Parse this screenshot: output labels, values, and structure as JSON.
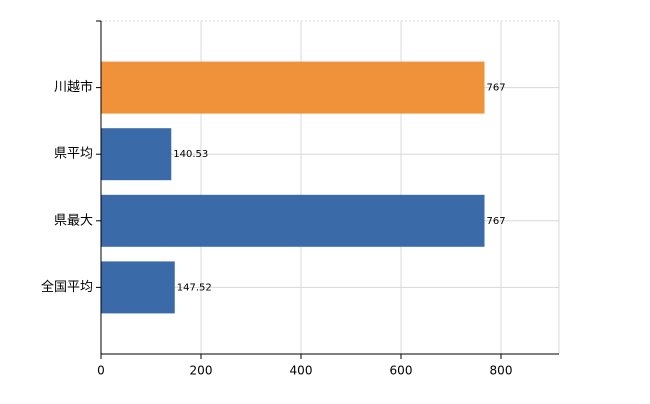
{
  "chart_data": {
    "type": "barh",
    "categories": [
      "川越市",
      "県平均",
      "県最大",
      "全国平均"
    ],
    "values": [
      767,
      140.53,
      767,
      147.52
    ],
    "colors": [
      "#f0923a",
      "#3a6aa8",
      "#3a6aa8",
      "#3a6aa8"
    ],
    "xlim": [
      0,
      916
    ],
    "xticks": [
      0,
      200,
      400,
      600,
      800
    ],
    "grid": true
  }
}
